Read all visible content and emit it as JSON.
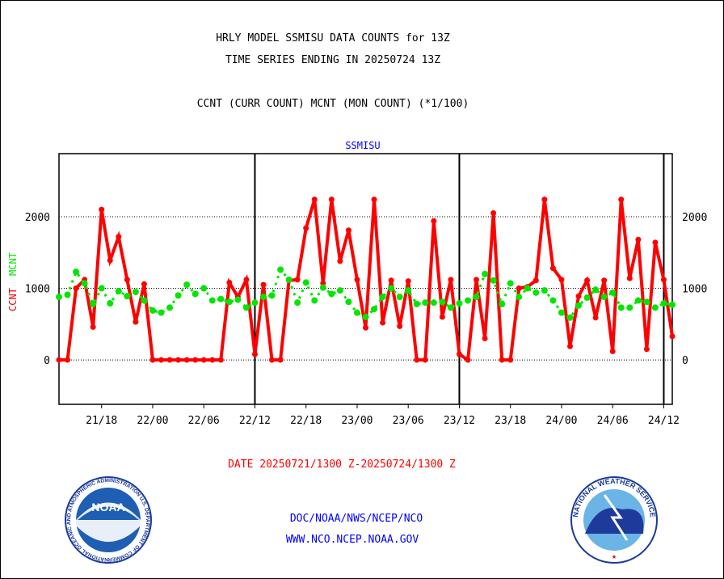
{
  "chart_data": {
    "type": "line",
    "title_lines": [
      "HRLY MODEL SSMISU DATA COUNTS for 13Z",
      "TIME SERIES ENDING IN 20250724 13Z"
    ],
    "subtitle": "CCNT (CURR COUNT) MCNT (MON COUNT) (*1/100)",
    "panel_label": "SSMISU",
    "ylabel_left": [
      "CCNT",
      "MCNT"
    ],
    "xlabel": "DATE 20250721/1300 Z-20250724/1300 Z",
    "ylim": [
      -620,
      2880
    ],
    "xlim_hours": [
      0,
      72
    ],
    "y_ticks": [
      "0",
      "1000",
      "2000"
    ],
    "y_tick_values": [
      0,
      1000,
      2000
    ],
    "x_ticks": [
      {
        "label": "21/18",
        "hour": 5
      },
      {
        "label": "22/00",
        "hour": 11
      },
      {
        "label": "22/06",
        "hour": 17
      },
      {
        "label": "22/12",
        "hour": 23
      },
      {
        "label": "22/18",
        "hour": 29
      },
      {
        "label": "23/00",
        "hour": 35
      },
      {
        "label": "23/06",
        "hour": 41
      },
      {
        "label": "23/12",
        "hour": 47
      },
      {
        "label": "23/18",
        "hour": 53
      },
      {
        "label": "24/00",
        "hour": 59
      },
      {
        "label": "24/06",
        "hour": 65
      },
      {
        "label": "24/12",
        "hour": 71
      }
    ],
    "day_boundaries_hours": [
      23,
      47,
      71
    ],
    "series": [
      {
        "name": "CCNT",
        "color": "#ff0000",
        "values": [
          0,
          0,
          1000,
          1120,
          460,
          2100,
          1390,
          1720,
          1120,
          530,
          1060,
          0,
          0,
          0,
          0,
          0,
          0,
          0,
          0,
          0,
          1080,
          880,
          1120,
          80,
          1050,
          0,
          0,
          1110,
          1120,
          1840,
          2240,
          1070,
          2240,
          1380,
          1810,
          1120,
          450,
          2240,
          520,
          1110,
          470,
          1100,
          0,
          0,
          1940,
          600,
          1120,
          80,
          0,
          1120,
          300,
          2050,
          0,
          0,
          1000,
          1020,
          1110,
          2240,
          1280,
          1120,
          190,
          890,
          1110,
          590,
          1110,
          120,
          2240,
          1140,
          1680,
          150,
          1640,
          1120,
          330
        ]
      },
      {
        "name": "MCNT",
        "color": "#00e600",
        "values": [
          880,
          910,
          1230,
          1070,
          780,
          1000,
          790,
          960,
          890,
          950,
          830,
          690,
          660,
          730,
          900,
          1050,
          920,
          1000,
          830,
          850,
          810,
          840,
          730,
          800,
          880,
          900,
          1260,
          1120,
          800,
          1080,
          830,
          1010,
          920,
          970,
          810,
          660,
          600,
          710,
          880,
          1000,
          880,
          970,
          780,
          800,
          800,
          810,
          730,
          790,
          830,
          880,
          1200,
          1110,
          780,
          1070,
          880,
          1000,
          940,
          970,
          830,
          660,
          590,
          760,
          870,
          980,
          880,
          940,
          730,
          730,
          830,
          810,
          730,
          790,
          770
        ]
      }
    ]
  },
  "footer": {
    "line1": "DOC/NOAA/NWS/NCEP/NCO",
    "line2": "WWW.NCO.NCEP.NOAA.GOV",
    "noaa_logo_text": "NOAA",
    "noaa_ring_text": "NATIONAL OCEANIC AND ATMOSPHERIC ADMINISTRATION U.S. DEPARTMENT OF COMMERCE",
    "nws_ring_text": "NATIONAL WEATHER SERVICE"
  },
  "colors": {
    "ccnt": "#ff0000",
    "mcnt": "#00e600",
    "label_blue": "#0000ff"
  }
}
